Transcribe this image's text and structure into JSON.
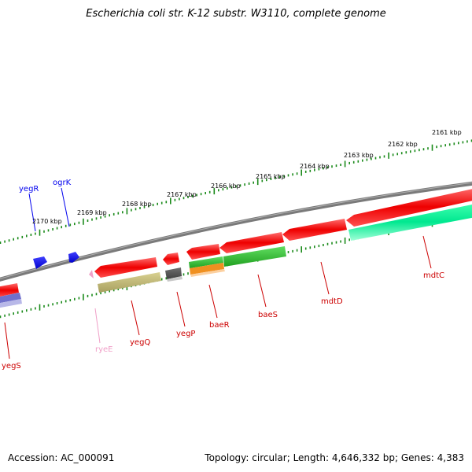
{
  "title": "Escherichia coli str. K-12 substr. W3110, complete genome",
  "footer": {
    "accession_label": "Accession:",
    "accession": "AC_000091",
    "topology_label": "Topology:",
    "topology": "circular",
    "length_label": "Length:",
    "length": "4,646,332 bp",
    "genes_label": "Genes:",
    "genes": "4,383"
  },
  "scale_ticks": [
    {
      "label": "2161 kbp"
    },
    {
      "label": "2162 kbp"
    },
    {
      "label": "2163 kbp"
    },
    {
      "label": "2164 kbp"
    },
    {
      "label": "2165 kbp"
    },
    {
      "label": "2166 kbp"
    },
    {
      "label": "2167 kbp"
    },
    {
      "label": "2168 kbp"
    },
    {
      "label": "2169 kbp"
    },
    {
      "label": "2170 kbp"
    }
  ],
  "genes": [
    {
      "name": "yegR",
      "color": "#0000ee"
    },
    {
      "name": "ogrK",
      "color": "#0000ee"
    },
    {
      "name": "yegS",
      "color": "#cc0000"
    },
    {
      "name": "ryeE",
      "color": "#f0a0c8"
    },
    {
      "name": "yegQ",
      "color": "#cc0000"
    },
    {
      "name": "yegP",
      "color": "#cc0000"
    },
    {
      "name": "baeR",
      "color": "#cc0000"
    },
    {
      "name": "baeS",
      "color": "#cc0000"
    },
    {
      "name": "mdtD",
      "color": "#cc0000"
    },
    {
      "name": "mdtC",
      "color": "#cc0000"
    }
  ]
}
